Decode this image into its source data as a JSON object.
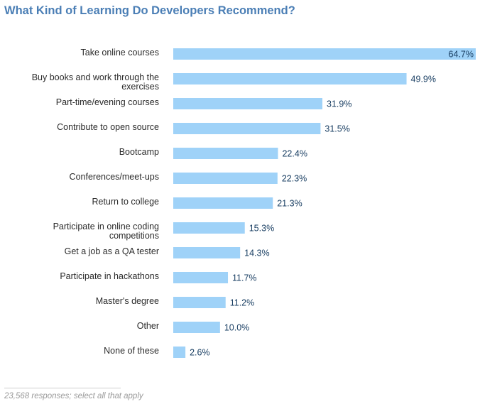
{
  "chart_data": {
    "type": "bar",
    "orientation": "horizontal",
    "title": "What Kind of Learning Do Developers Recommend?",
    "categories": [
      [
        "Take online courses"
      ],
      [
        "Buy books and work through the",
        "exercises"
      ],
      [
        "Part-time/evening courses"
      ],
      [
        "Contribute to open source"
      ],
      [
        "Bootcamp"
      ],
      [
        "Conferences/meet-ups"
      ],
      [
        "Return to college"
      ],
      [
        "Participate in online coding",
        "competitions"
      ],
      [
        "Get a job as a QA tester"
      ],
      [
        "Participate in hackathons"
      ],
      [
        "Master's degree"
      ],
      [
        "Other"
      ],
      [
        "None of these"
      ]
    ],
    "values": [
      64.7,
      49.9,
      31.9,
      31.5,
      22.4,
      22.3,
      21.3,
      15.3,
      14.3,
      11.7,
      11.2,
      10.0,
      2.6
    ],
    "value_labels": [
      "64.7%",
      "49.9%",
      "31.9%",
      "31.5%",
      "22.4%",
      "22.3%",
      "21.3%",
      "15.3%",
      "14.3%",
      "11.7%",
      "11.2%",
      "10.0%",
      "2.6%"
    ],
    "xlim": [
      0,
      64.7
    ],
    "bar_color": "#9fd2f8",
    "grid": false,
    "footnote": "23,568 responses; select all that apply"
  }
}
